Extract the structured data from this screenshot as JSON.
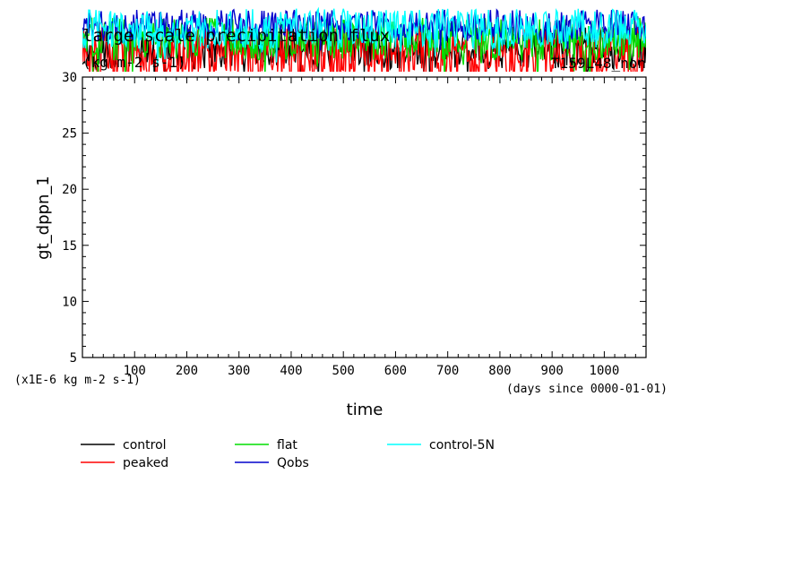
{
  "chart_data": {
    "type": "line",
    "title": "large scale precipitation flux",
    "units": "(kg m-2 s-1)",
    "run_label": "T159L48_non",
    "ylabel": "gt_dppn_1",
    "xlabel": "time",
    "x_unit_note": "(days since 0000-01-01)",
    "y_scale_note": "(x1E-6 kg m-2 s-1)",
    "xlim": [
      0,
      1080
    ],
    "ylim": [
      5,
      30
    ],
    "x_ticks": [
      100,
      200,
      300,
      400,
      500,
      600,
      700,
      800,
      900,
      1000
    ],
    "y_ticks": [
      5,
      10,
      15,
      20,
      25,
      30
    ],
    "grid": false,
    "legend_position": "bottom",
    "series": [
      {
        "name": "control",
        "color": "#000000",
        "base": 32.6,
        "amp": 1.9,
        "low_spikes": 2.6
      },
      {
        "name": "peaked",
        "color": "#ff0000",
        "base": 32.2,
        "amp": 2.4,
        "low_spikes": 4.2
      },
      {
        "name": "flat",
        "color": "#00dd00",
        "base": 33.4,
        "amp": 1.9,
        "low_spikes": 3.4
      },
      {
        "name": "Qobs",
        "color": "#0000cc",
        "base": 34.6,
        "amp": 1.4,
        "low_spikes": 1.2
      },
      {
        "name": "control-5N",
        "color": "#00ffff",
        "base": 34.3,
        "amp": 1.8,
        "low_spikes": 2.2
      }
    ]
  }
}
